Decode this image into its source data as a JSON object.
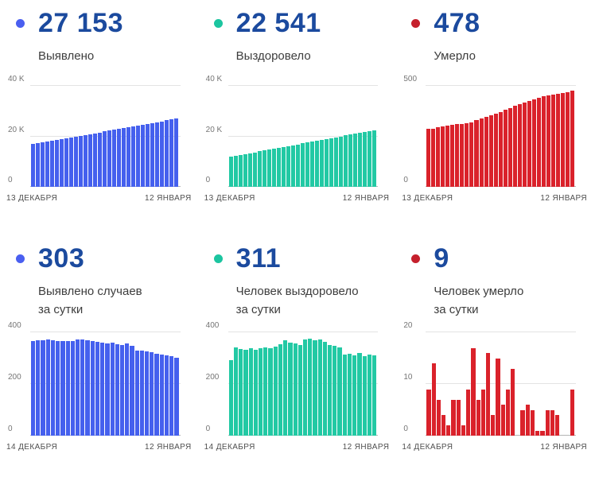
{
  "theme": {
    "stat_number_color": "#1b4a9e",
    "text_color": "#3d3d3d",
    "axis_text_color": "#757575",
    "blue": "#4560ee",
    "teal": "#22c9a4",
    "red": "#da222b"
  },
  "chart_data": [
    {
      "type": "bar",
      "title": "Выявлено",
      "stat_value": "27 153",
      "label_lines": [
        "Выявлено"
      ],
      "accent": "#4a5ff0",
      "bar_color": "#4560ee",
      "ylim": [
        0,
        40000
      ],
      "yticks": [
        {
          "label": "40 K",
          "value": 40000
        },
        {
          "label": "20 K",
          "value": 20000
        },
        {
          "label": "0",
          "value": 0
        }
      ],
      "x_range": [
        "13 ДЕКАБРЯ",
        "12 ЯНВАРЯ"
      ],
      "values": [
        17000,
        17350,
        17650,
        18000,
        18300,
        18650,
        19000,
        19300,
        19650,
        20000,
        20300,
        20650,
        21000,
        21300,
        21650,
        22000,
        22300,
        22650,
        23000,
        23300,
        23650,
        24000,
        24300,
        24650,
        25000,
        25300,
        25650,
        26000,
        26400,
        26800,
        27153
      ]
    },
    {
      "type": "bar",
      "title": "Выздоровело",
      "stat_value": "22 541",
      "label_lines": [
        "Выздоровело"
      ],
      "accent": "#1cc5a0",
      "bar_color": "#22c9a4",
      "ylim": [
        0,
        40000
      ],
      "yticks": [
        {
          "label": "40 K",
          "value": 40000
        },
        {
          "label": "20 K",
          "value": 20000
        },
        {
          "label": "0",
          "value": 0
        }
      ],
      "x_range": [
        "13 ДЕКАБРЯ",
        "12 ЯНВАРЯ"
      ],
      "values": [
        12000,
        12350,
        12700,
        13050,
        13400,
        13750,
        14100,
        14450,
        14800,
        15150,
        15500,
        15850,
        16200,
        16550,
        16900,
        17250,
        17600,
        17950,
        18300,
        18650,
        19000,
        19350,
        19700,
        20050,
        20400,
        20750,
        21100,
        21450,
        21800,
        22170,
        22541
      ]
    },
    {
      "type": "bar",
      "title": "Умерло",
      "stat_value": "478",
      "label_lines": [
        "Умерло"
      ],
      "accent": "#c5202c",
      "bar_color": "#da222b",
      "ylim": [
        0,
        500
      ],
      "yticks": [
        {
          "label": "500",
          "value": 500
        },
        {
          "label": "0",
          "value": 0
        }
      ],
      "x_range": [
        "13 ДЕКАБРЯ",
        "12 ЯНВАРЯ"
      ],
      "values": [
        290,
        289,
        296,
        302,
        306,
        309,
        312,
        314,
        317,
        320,
        330,
        339,
        347,
        354,
        362,
        370,
        381,
        392,
        402,
        412,
        420,
        428,
        436,
        443,
        449,
        454,
        459,
        463,
        466,
        469,
        478
      ]
    },
    {
      "type": "bar",
      "title": "Выявлено случаев за сутки",
      "stat_value": "303",
      "label_lines": [
        "Выявлено случаев",
        "за сутки"
      ],
      "accent": "#4a5ff0",
      "bar_color": "#4560ee",
      "ylim": [
        0,
        400
      ],
      "yticks": [
        {
          "label": "400",
          "value": 400
        },
        {
          "label": "200",
          "value": 200
        },
        {
          "label": "0",
          "value": 0
        }
      ],
      "x_range": [
        "14 ДЕКАБРЯ",
        "12 ЯНВАРЯ"
      ],
      "values": [
        366,
        369,
        370,
        371,
        369,
        367,
        367,
        366,
        366,
        373,
        371,
        369,
        367,
        363,
        360,
        358,
        361,
        355,
        352,
        356,
        349,
        330,
        328,
        325,
        322,
        318,
        315,
        312,
        308,
        303
      ]
    },
    {
      "type": "bar",
      "title": "Человек выздоровело за сутки",
      "stat_value": "311",
      "label_lines": [
        "Человек выздоровело",
        "за сутки"
      ],
      "accent": "#1cc5a0",
      "bar_color": "#22c9a4",
      "ylim": [
        0,
        400
      ],
      "yticks": [
        {
          "label": "400",
          "value": 400
        },
        {
          "label": "200",
          "value": 200
        },
        {
          "label": "0",
          "value": 0
        }
      ],
      "x_range": [
        "14 ДЕКАБРЯ",
        "12 ЯНВАРЯ"
      ],
      "values": [
        292,
        342,
        336,
        331,
        339,
        333,
        337,
        341,
        339,
        346,
        354,
        368,
        361,
        356,
        351,
        373,
        376,
        369,
        371,
        364,
        352,
        347,
        342,
        315,
        318,
        312,
        320,
        308,
        315,
        311
      ]
    },
    {
      "type": "bar",
      "title": "Человек умерло за сутки",
      "stat_value": "9",
      "label_lines": [
        "Человек умерло",
        "за сутки"
      ],
      "accent": "#c5202c",
      "bar_color": "#da222b",
      "ylim": [
        0,
        20
      ],
      "yticks": [
        {
          "label": "20",
          "value": 20
        },
        {
          "label": "10",
          "value": 10
        },
        {
          "label": "0",
          "value": 0
        }
      ],
      "x_range": [
        "14 ДЕКАБРЯ",
        "12 ЯНВАРЯ"
      ],
      "values": [
        9,
        14,
        7,
        4,
        2,
        7,
        7,
        2,
        9,
        17,
        7,
        9,
        16,
        4,
        15,
        6,
        9,
        13,
        0,
        5,
        6,
        5,
        1,
        1,
        5,
        5,
        4,
        0,
        0,
        9
      ]
    }
  ]
}
